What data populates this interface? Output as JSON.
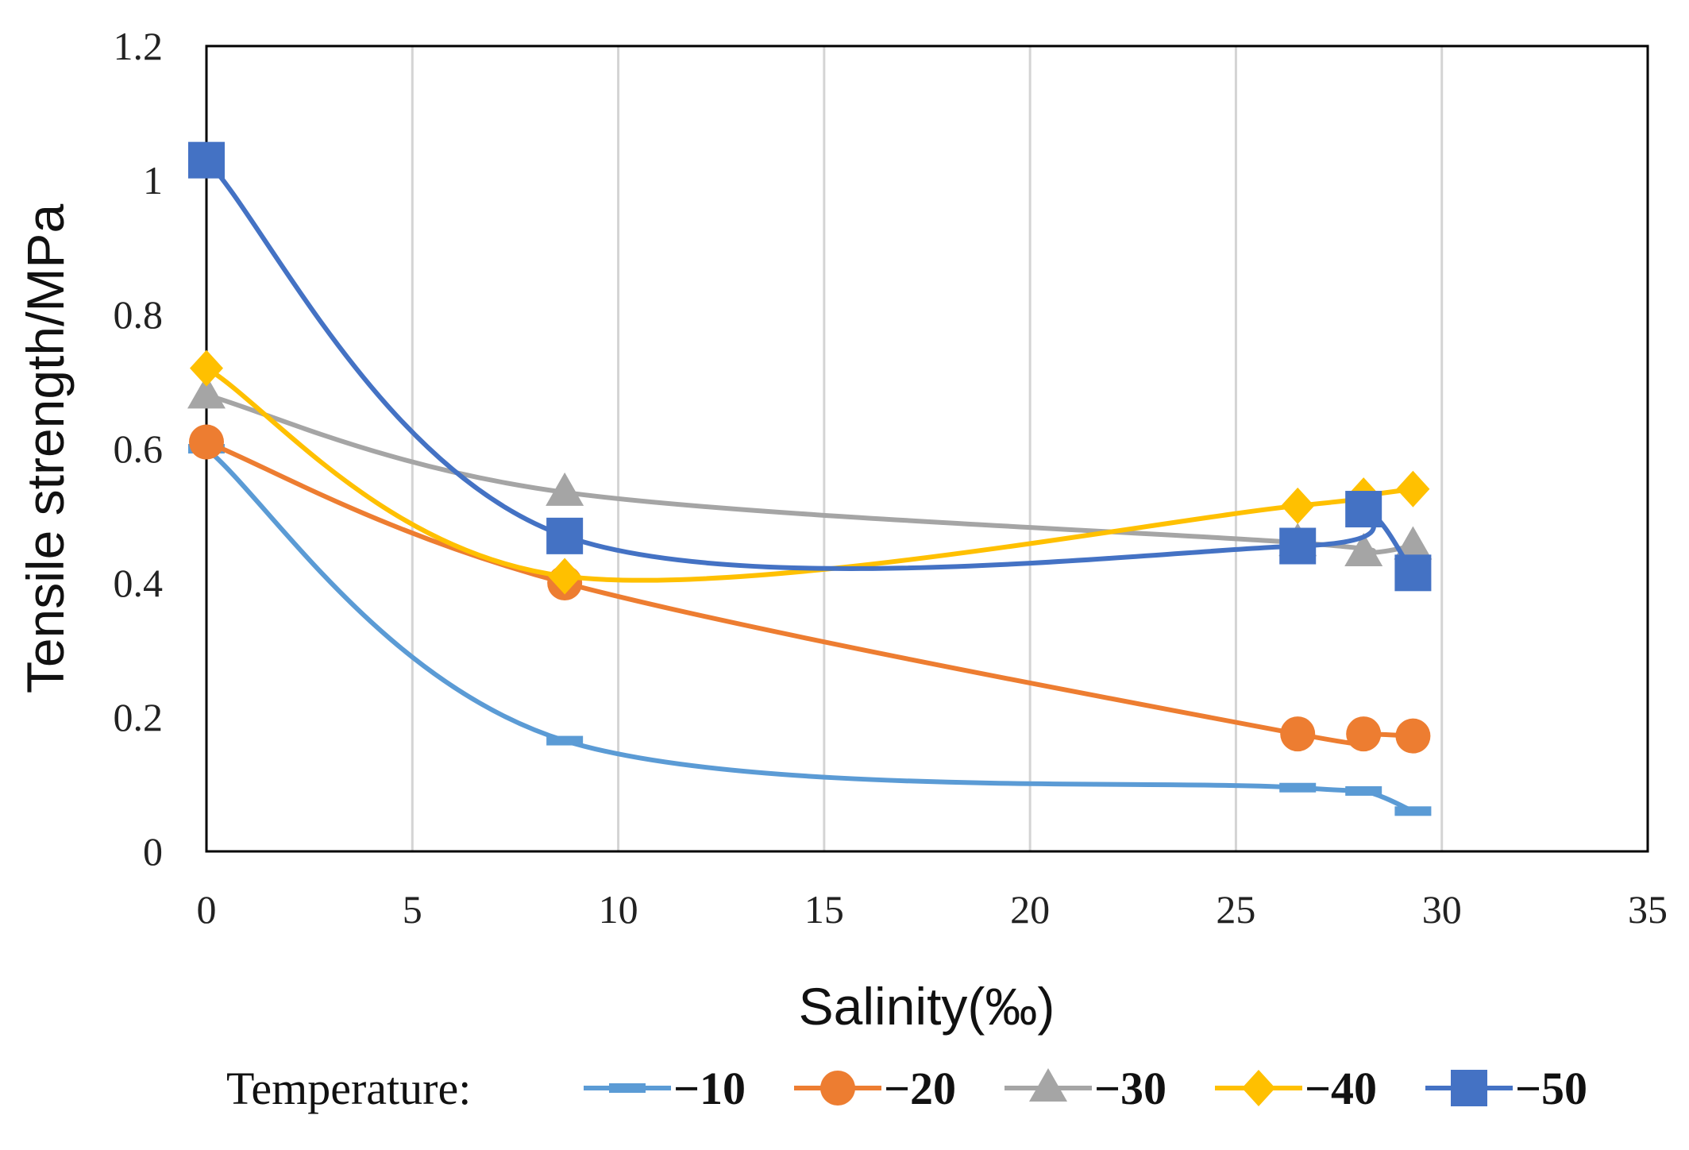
{
  "chart_data": {
    "type": "line",
    "title": "",
    "xlabel": "Salinity(‰)",
    "ylabel": "Tensile strength/MPa",
    "xlim": [
      0,
      35
    ],
    "ylim": [
      0,
      1.2
    ],
    "x_ticks": [
      "0",
      "5",
      "10",
      "15",
      "20",
      "25",
      "30",
      "35"
    ],
    "y_ticks": [
      "0",
      "0.2",
      "0.4",
      "0.6",
      "0.8",
      "1",
      "1.2"
    ],
    "grid": "vertical",
    "legend": {
      "title": "Temperature:",
      "placement": "bottom"
    },
    "x": [
      0,
      8.7,
      26.5,
      28.1,
      29.3
    ],
    "series": [
      {
        "name": "−10",
        "marker": "dash",
        "color": "#5B9BD5",
        "values": [
          0.6,
          0.165,
          0.095,
          0.09,
          0.06
        ]
      },
      {
        "name": "−20",
        "marker": "circle",
        "color": "#ED7D31",
        "values": [
          0.61,
          0.4,
          0.175,
          0.175,
          0.172
        ]
      },
      {
        "name": "−30",
        "marker": "triangle",
        "color": "#A5A5A5",
        "values": [
          0.68,
          0.535,
          0.46,
          0.445,
          0.455
        ]
      },
      {
        "name": "−40",
        "marker": "diamond",
        "color": "#FFC000",
        "values": [
          0.72,
          0.41,
          0.515,
          0.53,
          0.54
        ]
      },
      {
        "name": "−50",
        "marker": "square",
        "color": "#4472C4",
        "values": [
          1.03,
          0.47,
          0.455,
          0.51,
          0.415
        ]
      }
    ]
  }
}
